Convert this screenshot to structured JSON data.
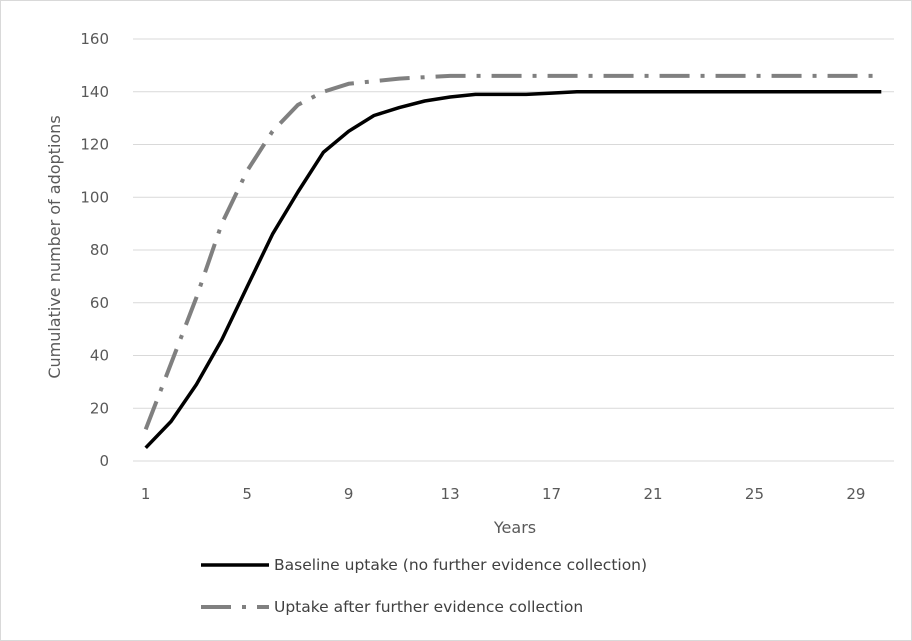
{
  "chart_data": {
    "type": "line",
    "title": "",
    "xlabel": "Years",
    "ylabel": "Cumulative number of adoptions",
    "x": [
      1,
      2,
      3,
      4,
      5,
      6,
      7,
      8,
      9,
      10,
      11,
      12,
      13,
      14,
      15,
      16,
      17,
      18,
      19,
      20,
      21,
      22,
      23,
      24,
      25,
      26,
      27,
      28,
      29,
      30
    ],
    "x_ticks": [
      1,
      5,
      9,
      13,
      17,
      21,
      25,
      29
    ],
    "ylim": [
      0,
      160
    ],
    "y_ticks": [
      0,
      20,
      40,
      60,
      80,
      100,
      120,
      140,
      160
    ],
    "grid": true,
    "legend_position": "bottom",
    "series": [
      {
        "name": "Baseline uptake (no further evidence collection)",
        "color": "#000000",
        "style": "solid",
        "values": [
          5,
          15,
          29,
          46,
          66,
          86,
          102,
          117,
          125,
          131,
          134,
          136.5,
          138,
          139,
          139,
          139,
          139.5,
          140,
          140,
          140,
          140,
          140,
          140,
          140,
          140,
          140,
          140,
          140,
          140,
          140
        ]
      },
      {
        "name": "Uptake after further evidence collection",
        "color": "#808080",
        "style": "dashdot",
        "values": [
          12,
          37,
          62,
          90,
          110,
          125,
          135,
          140,
          143,
          144,
          145,
          145.5,
          146,
          146,
          146,
          146,
          146,
          146,
          146,
          146,
          146,
          146,
          146,
          146,
          146,
          146,
          146,
          146,
          146,
          146
        ]
      }
    ]
  }
}
